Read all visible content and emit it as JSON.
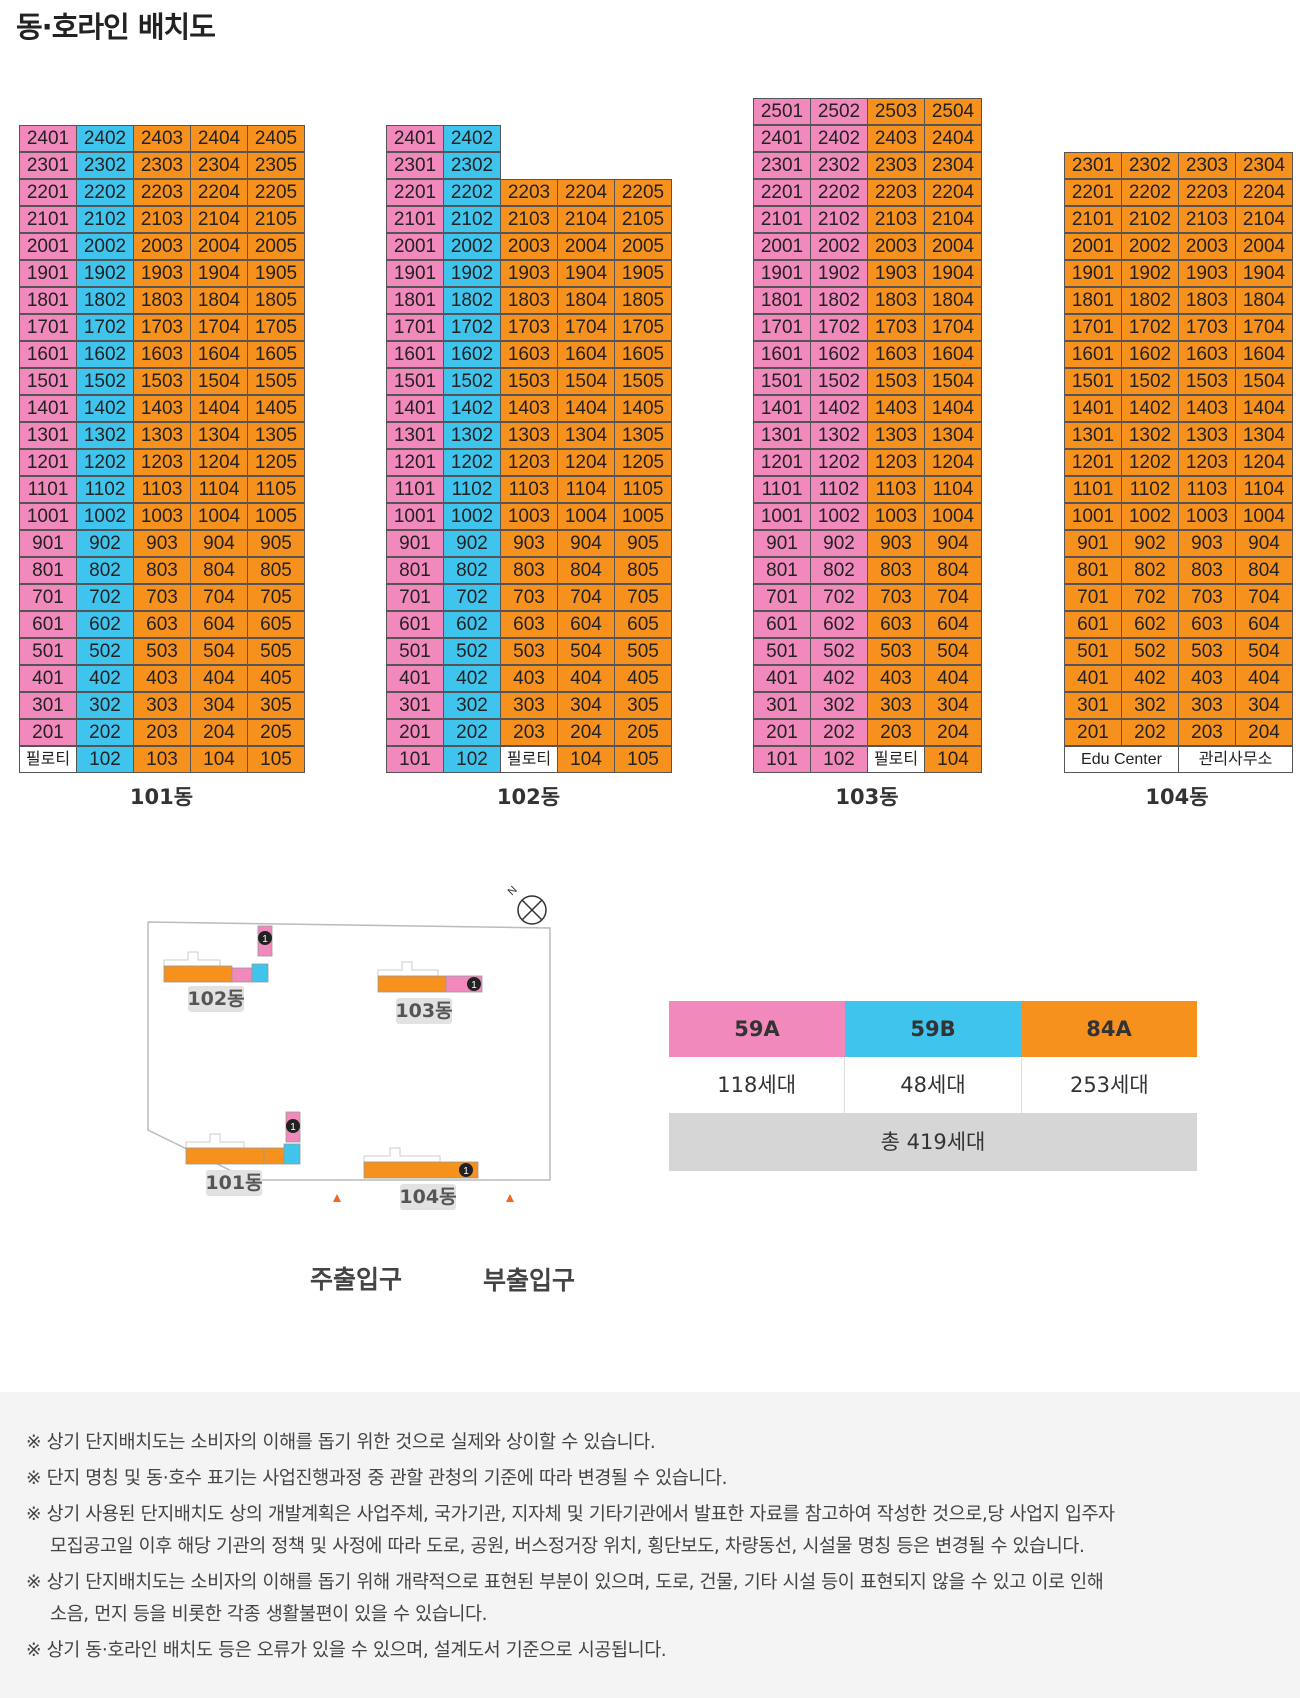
{
  "title": "동·호라인 배치도",
  "colors": {
    "59A": "#f189bc",
    "59B": "#3fc4ee",
    "84A": "#f6911e",
    "background_notes": "#f4f4f4",
    "total_row": "#d6d6d6"
  },
  "buildings": [
    {
      "name": "101동",
      "floors": 24,
      "cols": 5,
      "types": [
        "59A",
        "59B",
        "84A",
        "84A",
        "84A"
      ],
      "ground": [
        {
          "label": "필로티",
          "type": "W",
          "span": 1
        },
        {
          "label": "102",
          "type": "59B",
          "span": 1
        },
        {
          "label": "103",
          "type": "84A",
          "span": 1
        },
        {
          "label": "104",
          "type": "84A",
          "span": 1
        },
        {
          "label": "105",
          "type": "84A",
          "span": 1
        }
      ],
      "partial": []
    },
    {
      "name": "102동",
      "floors": 24,
      "cols": 5,
      "types": [
        "59A",
        "59B",
        "84A",
        "84A",
        "84A"
      ],
      "ground": [
        {
          "label": "101",
          "type": "59A",
          "span": 1
        },
        {
          "label": "102",
          "type": "59B",
          "span": 1
        },
        {
          "label": "필로티",
          "type": "W",
          "span": 1
        },
        {
          "label": "104",
          "type": "84A",
          "span": 1
        },
        {
          "label": "105",
          "type": "84A",
          "span": 1
        }
      ],
      "partial": [
        {
          "floor": 23,
          "cols": 2
        },
        {
          "floor": 24,
          "cols": 2
        }
      ]
    },
    {
      "name": "103동",
      "floors": 25,
      "cols": 4,
      "types": [
        "59A",
        "59A",
        "84A",
        "84A"
      ],
      "ground": [
        {
          "label": "101",
          "type": "59A",
          "span": 1
        },
        {
          "label": "102",
          "type": "59A",
          "span": 1
        },
        {
          "label": "필로티",
          "type": "W",
          "span": 1
        },
        {
          "label": "104",
          "type": "84A",
          "span": 1
        }
      ],
      "partial": []
    },
    {
      "name": "104동",
      "floors": 23,
      "cols": 4,
      "types": [
        "84A",
        "84A",
        "84A",
        "84A"
      ],
      "ground": [
        {
          "label": "Edu Center",
          "type": "W",
          "span": 2
        },
        {
          "label": "관리사무소",
          "type": "W",
          "span": 2
        }
      ],
      "partial": []
    }
  ],
  "siteplan": {
    "labels": [
      "102동",
      "103동",
      "101동",
      "104동"
    ],
    "marker": "1",
    "entrances": [
      "주출입구",
      "부출입구"
    ]
  },
  "legend": {
    "types": [
      {
        "name": "59A",
        "count": "118세대",
        "color": "#f189bc"
      },
      {
        "name": "59B",
        "count": "48세대",
        "color": "#3fc4ee"
      },
      {
        "name": "84A",
        "count": "253세대",
        "color": "#f6911e"
      }
    ],
    "total": "총 419세대"
  },
  "notes": [
    "※ 상기 단지배치도는 소비자의 이해를 돕기 위한 것으로 실제와 상이할 수 있습니다.",
    "※ 단지 명칭 및 동·호수 표기는 사업진행과정 중 관할 관청의 기준에 따라 변경될 수 있습니다.",
    "※ 상기 사용된 단지배치도 상의 개발계획은 사업주체, 국가기관, 지자체 및 기타기관에서 발표한 자료를 참고하여 작성한 것으로,당 사업지 입주자",
    "모집공고일 이후 해당 기관의 정책 및 사정에 따라 도로, 공원, 버스정거장 위치, 횡단보도, 차량동선, 시설물 명칭 등은 변경될 수 있습니다.",
    "※ 상기 단지배치도는 소비자의 이해를 돕기 위해 개략적으로 표현된 부분이 있으며, 도로, 건물, 기타 시설 등이 표현되지 않을 수 있고 이로 인해",
    "소음, 먼지 등을 비롯한 각종 생활불편이 있을 수 있습니다.",
    "※ 상기 동·호라인 배치도 등은 오류가 있을 수 있으며, 설계도서 기준으로 시공됩니다."
  ]
}
